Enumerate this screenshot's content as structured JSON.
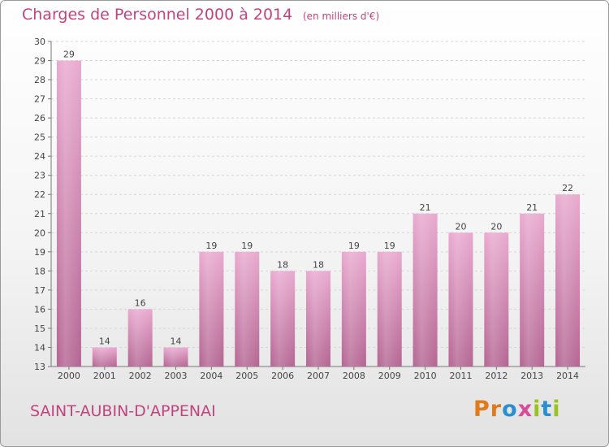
{
  "header": {
    "title": "Charges de Personnel 2000 à 2014",
    "unit": "(en milliers d'€)"
  },
  "footer": {
    "town": "SAINT-AUBIN-D'APPENAI",
    "brand": "Proxiti",
    "brand_letters": [
      {
        "ch": "P",
        "color": "#e07a1a"
      },
      {
        "ch": "r",
        "color": "#e07a1a"
      },
      {
        "ch": "o",
        "color": "#2a8fd0"
      },
      {
        "ch": "x",
        "color": "#d94a9a"
      },
      {
        "ch": "i",
        "color": "#9bc31f"
      },
      {
        "ch": "t",
        "color": "#2a8fd0"
      },
      {
        "ch": "i",
        "color": "#9bc31f"
      }
    ]
  },
  "colors": {
    "title": "#c2447e",
    "bar_top": "#e9a9cf",
    "bar_bottom": "#b46592",
    "grid": "#d6d6d6",
    "axis": "#777777"
  },
  "chart_data": {
    "type": "bar",
    "categories": [
      "2000",
      "2001",
      "2002",
      "2003",
      "2004",
      "2005",
      "2006",
      "2007",
      "2008",
      "2009",
      "2010",
      "2011",
      "2012",
      "2013",
      "2014"
    ],
    "values": [
      29,
      14,
      16,
      14,
      19,
      19,
      18,
      18,
      19,
      19,
      21,
      20,
      20,
      21,
      22
    ],
    "ylim": [
      13,
      30
    ],
    "yticks": [
      13,
      14,
      15,
      16,
      17,
      18,
      19,
      20,
      21,
      22,
      23,
      24,
      25,
      26,
      27,
      28,
      29,
      30
    ],
    "grid": true
  }
}
